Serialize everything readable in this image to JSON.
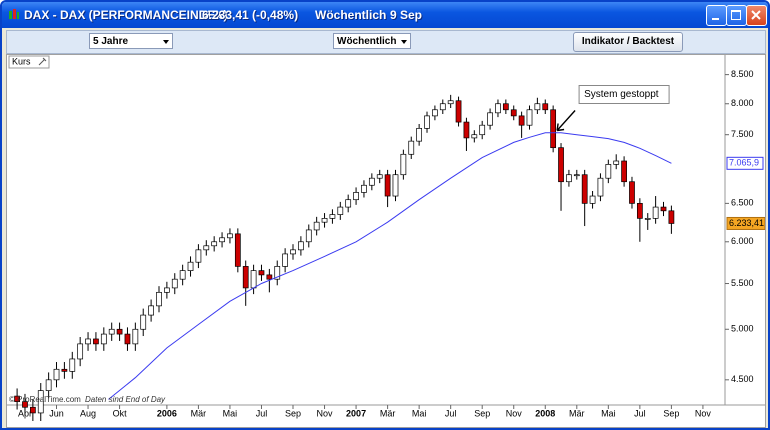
{
  "window": {
    "title": "DAX - DAX (PERFORMANCEINDEX)",
    "quote": "6.233,41 (-0,48%)",
    "period": "Wöchentlich",
    "date": "9 Sep"
  },
  "toolbar": {
    "range": "5 Jahre",
    "interval": "Wöchentlich",
    "button": "Indikator / Backtest"
  },
  "chart_data": {
    "type": "candlestick",
    "panel_label": "Kurs",
    "footer_source": "© ProRealTime.com",
    "footer_note": "Daten sind End of Day",
    "log_scale": true,
    "up_color": "#ffffff",
    "down_color": "#cc0000",
    "xlim": [
      2.24,
      47.4
    ],
    "ylim": [
      4270,
      8800
    ],
    "xticks": [
      {
        "value": 3,
        "label": "Apr"
      },
      {
        "value": 5,
        "label": "Jun"
      },
      {
        "value": 7,
        "label": "Aug"
      },
      {
        "value": 9,
        "label": "Okt"
      },
      {
        "value": 12,
        "label": "2006"
      },
      {
        "value": 14,
        "label": "Mär"
      },
      {
        "value": 16,
        "label": "Mai"
      },
      {
        "value": 18,
        "label": "Jul"
      },
      {
        "value": 20,
        "label": "Sep"
      },
      {
        "value": 22,
        "label": "Nov"
      },
      {
        "value": 24,
        "label": "2007"
      },
      {
        "value": 26,
        "label": "Mär"
      },
      {
        "value": 28,
        "label": "Mai"
      },
      {
        "value": 30,
        "label": "Jul"
      },
      {
        "value": 32,
        "label": "Sep"
      },
      {
        "value": 34,
        "label": "Nov"
      },
      {
        "value": 36,
        "label": "2008"
      },
      {
        "value": 38,
        "label": "Mär"
      },
      {
        "value": 40,
        "label": "Mai"
      },
      {
        "value": 42,
        "label": "Jul"
      },
      {
        "value": 44,
        "label": "Sep"
      },
      {
        "value": 46,
        "label": "Nov"
      }
    ],
    "yticks": [
      {
        "value": 8500,
        "label": "8.500"
      },
      {
        "value": 8000,
        "label": "8.000"
      },
      {
        "value": 7500,
        "label": "7.500"
      },
      {
        "value": 6500,
        "label": "6.500"
      },
      {
        "value": 6000,
        "label": "6.000"
      },
      {
        "value": 5500,
        "label": "5.500"
      },
      {
        "value": 5000,
        "label": "5.000"
      },
      {
        "value": 4500,
        "label": "4.500"
      }
    ],
    "x": [
      2.5,
      3,
      3.5,
      4,
      4.5,
      5,
      5.5,
      6,
      6.5,
      7,
      7.5,
      8,
      8.5,
      9,
      9.5,
      10,
      10.5,
      11,
      11.5,
      12,
      12.5,
      13,
      13.5,
      14,
      14.5,
      15,
      15.5,
      16,
      16.5,
      17,
      17.5,
      18,
      18.5,
      19,
      19.5,
      20,
      20.5,
      21,
      21.5,
      22,
      22.5,
      23,
      23.5,
      24,
      24.5,
      25,
      25.5,
      26,
      26.5,
      27,
      27.5,
      28,
      28.5,
      29,
      29.5,
      30,
      30.5,
      31,
      31.5,
      32,
      32.5,
      33,
      33.5,
      34,
      34.5,
      35,
      35.5,
      36,
      36.5,
      37,
      37.5,
      38,
      38.5,
      39,
      39.5,
      40,
      40.5,
      41,
      41.5,
      42,
      42.5,
      43,
      43.5,
      44
    ],
    "open": [
      4350,
      4300,
      4250,
      4200,
      4400,
      4500,
      4600,
      4580,
      4700,
      4850,
      4900,
      4850,
      4950,
      5000,
      4950,
      4850,
      5000,
      5150,
      5250,
      5400,
      5450,
      5550,
      5650,
      5750,
      5900,
      5950,
      6000,
      6050,
      6100,
      5700,
      5450,
      5650,
      5600,
      5550,
      5700,
      5850,
      5900,
      6000,
      6150,
      6250,
      6300,
      6350,
      6450,
      6550,
      6650,
      6750,
      6850,
      6900,
      6600,
      6900,
      7200,
      7400,
      7600,
      7800,
      7900,
      8000,
      8050,
      7700,
      7450,
      7500,
      7650,
      7850,
      8000,
      7900,
      7800,
      7650,
      7900,
      8000,
      7900,
      7300,
      6800,
      6900,
      6900,
      6500,
      6600,
      6850,
      7050,
      7100,
      6800,
      6500,
      6300,
      6300,
      6450,
      6400
    ],
    "high": [
      4420,
      4370,
      4320,
      4470,
      4570,
      4670,
      4670,
      4770,
      4920,
      4970,
      4970,
      5020,
      5070,
      5070,
      5020,
      5070,
      5220,
      5320,
      5470,
      5520,
      5620,
      5720,
      5820,
      5970,
      6020,
      6070,
      6120,
      6170,
      6170,
      5770,
      5720,
      5720,
      5670,
      5770,
      5920,
      5970,
      6070,
      6220,
      6320,
      6370,
      6420,
      6520,
      6620,
      6720,
      6820,
      6920,
      6970,
      6970,
      6970,
      7270,
      7470,
      7670,
      7870,
      7970,
      8070,
      8150,
      8120,
      7770,
      7570,
      7720,
      7920,
      8070,
      8070,
      7970,
      7870,
      7970,
      8100,
      8070,
      7970,
      7370,
      6970,
      6970,
      6970,
      6670,
      6920,
      7120,
      7200,
      7170,
      6870,
      6570,
      6370,
      6600,
      6520,
      6470
    ],
    "low": [
      4230,
      4180,
      4130,
      4130,
      4330,
      4430,
      4510,
      4510,
      4630,
      4780,
      4780,
      4780,
      4880,
      4880,
      4780,
      4780,
      4930,
      5080,
      5180,
      5330,
      5380,
      5480,
      5580,
      5680,
      5830,
      5880,
      5930,
      5980,
      5630,
      5250,
      5380,
      5530,
      5400,
      5480,
      5630,
      5780,
      5830,
      5930,
      6080,
      6180,
      6230,
      6280,
      6380,
      6480,
      6580,
      6680,
      6780,
      6450,
      6530,
      6830,
      7130,
      7330,
      7530,
      7730,
      7830,
      7930,
      7630,
      7250,
      7380,
      7430,
      7580,
      7780,
      7830,
      7730,
      7450,
      7580,
      7830,
      7830,
      7230,
      6400,
      6730,
      6830,
      6200,
      6430,
      6530,
      6780,
      6980,
      6730,
      6430,
      6000,
      6150,
      6230,
      6330,
      6100
    ],
    "close": [
      4300,
      4250,
      4200,
      4400,
      4500,
      4600,
      4580,
      4700,
      4850,
      4900,
      4850,
      4950,
      5000,
      4950,
      4850,
      5000,
      5150,
      5250,
      5400,
      5450,
      5550,
      5650,
      5750,
      5900,
      5950,
      6000,
      6050,
      6100,
      5700,
      5450,
      5650,
      5600,
      5550,
      5700,
      5850,
      5900,
      6000,
      6150,
      6250,
      6300,
      6350,
      6450,
      6550,
      6650,
      6750,
      6850,
      6900,
      6600,
      6900,
      7200,
      7400,
      7600,
      7800,
      7900,
      8000,
      8050,
      7700,
      7450,
      7500,
      7650,
      7850,
      8000,
      7900,
      7800,
      7650,
      7900,
      8000,
      7900,
      7300,
      6800,
      6900,
      6900,
      6500,
      6600,
      6850,
      7050,
      7100,
      6800,
      6500,
      6300,
      6300,
      6450,
      6400,
      6233.41
    ],
    "close_label": "6.233,41",
    "moving_average": {
      "color": "#3b3bf0",
      "x": [
        8.3,
        10,
        12,
        14,
        16,
        18,
        20,
        22,
        24,
        26,
        28,
        30,
        32,
        34,
        35,
        36,
        37,
        38,
        39,
        40,
        41,
        42,
        43,
        44
      ],
      "values": [
        4320,
        4520,
        4810,
        5050,
        5300,
        5500,
        5650,
        5820,
        6000,
        6250,
        6550,
        6850,
        7150,
        7380,
        7460,
        7530,
        7530,
        7500,
        7470,
        7440,
        7380,
        7290,
        7180,
        7065.9
      ],
      "last_label": "7.065,9"
    },
    "annotation": {
      "text": "System gestoppt",
      "x": 36.75,
      "y": 7566
    }
  }
}
